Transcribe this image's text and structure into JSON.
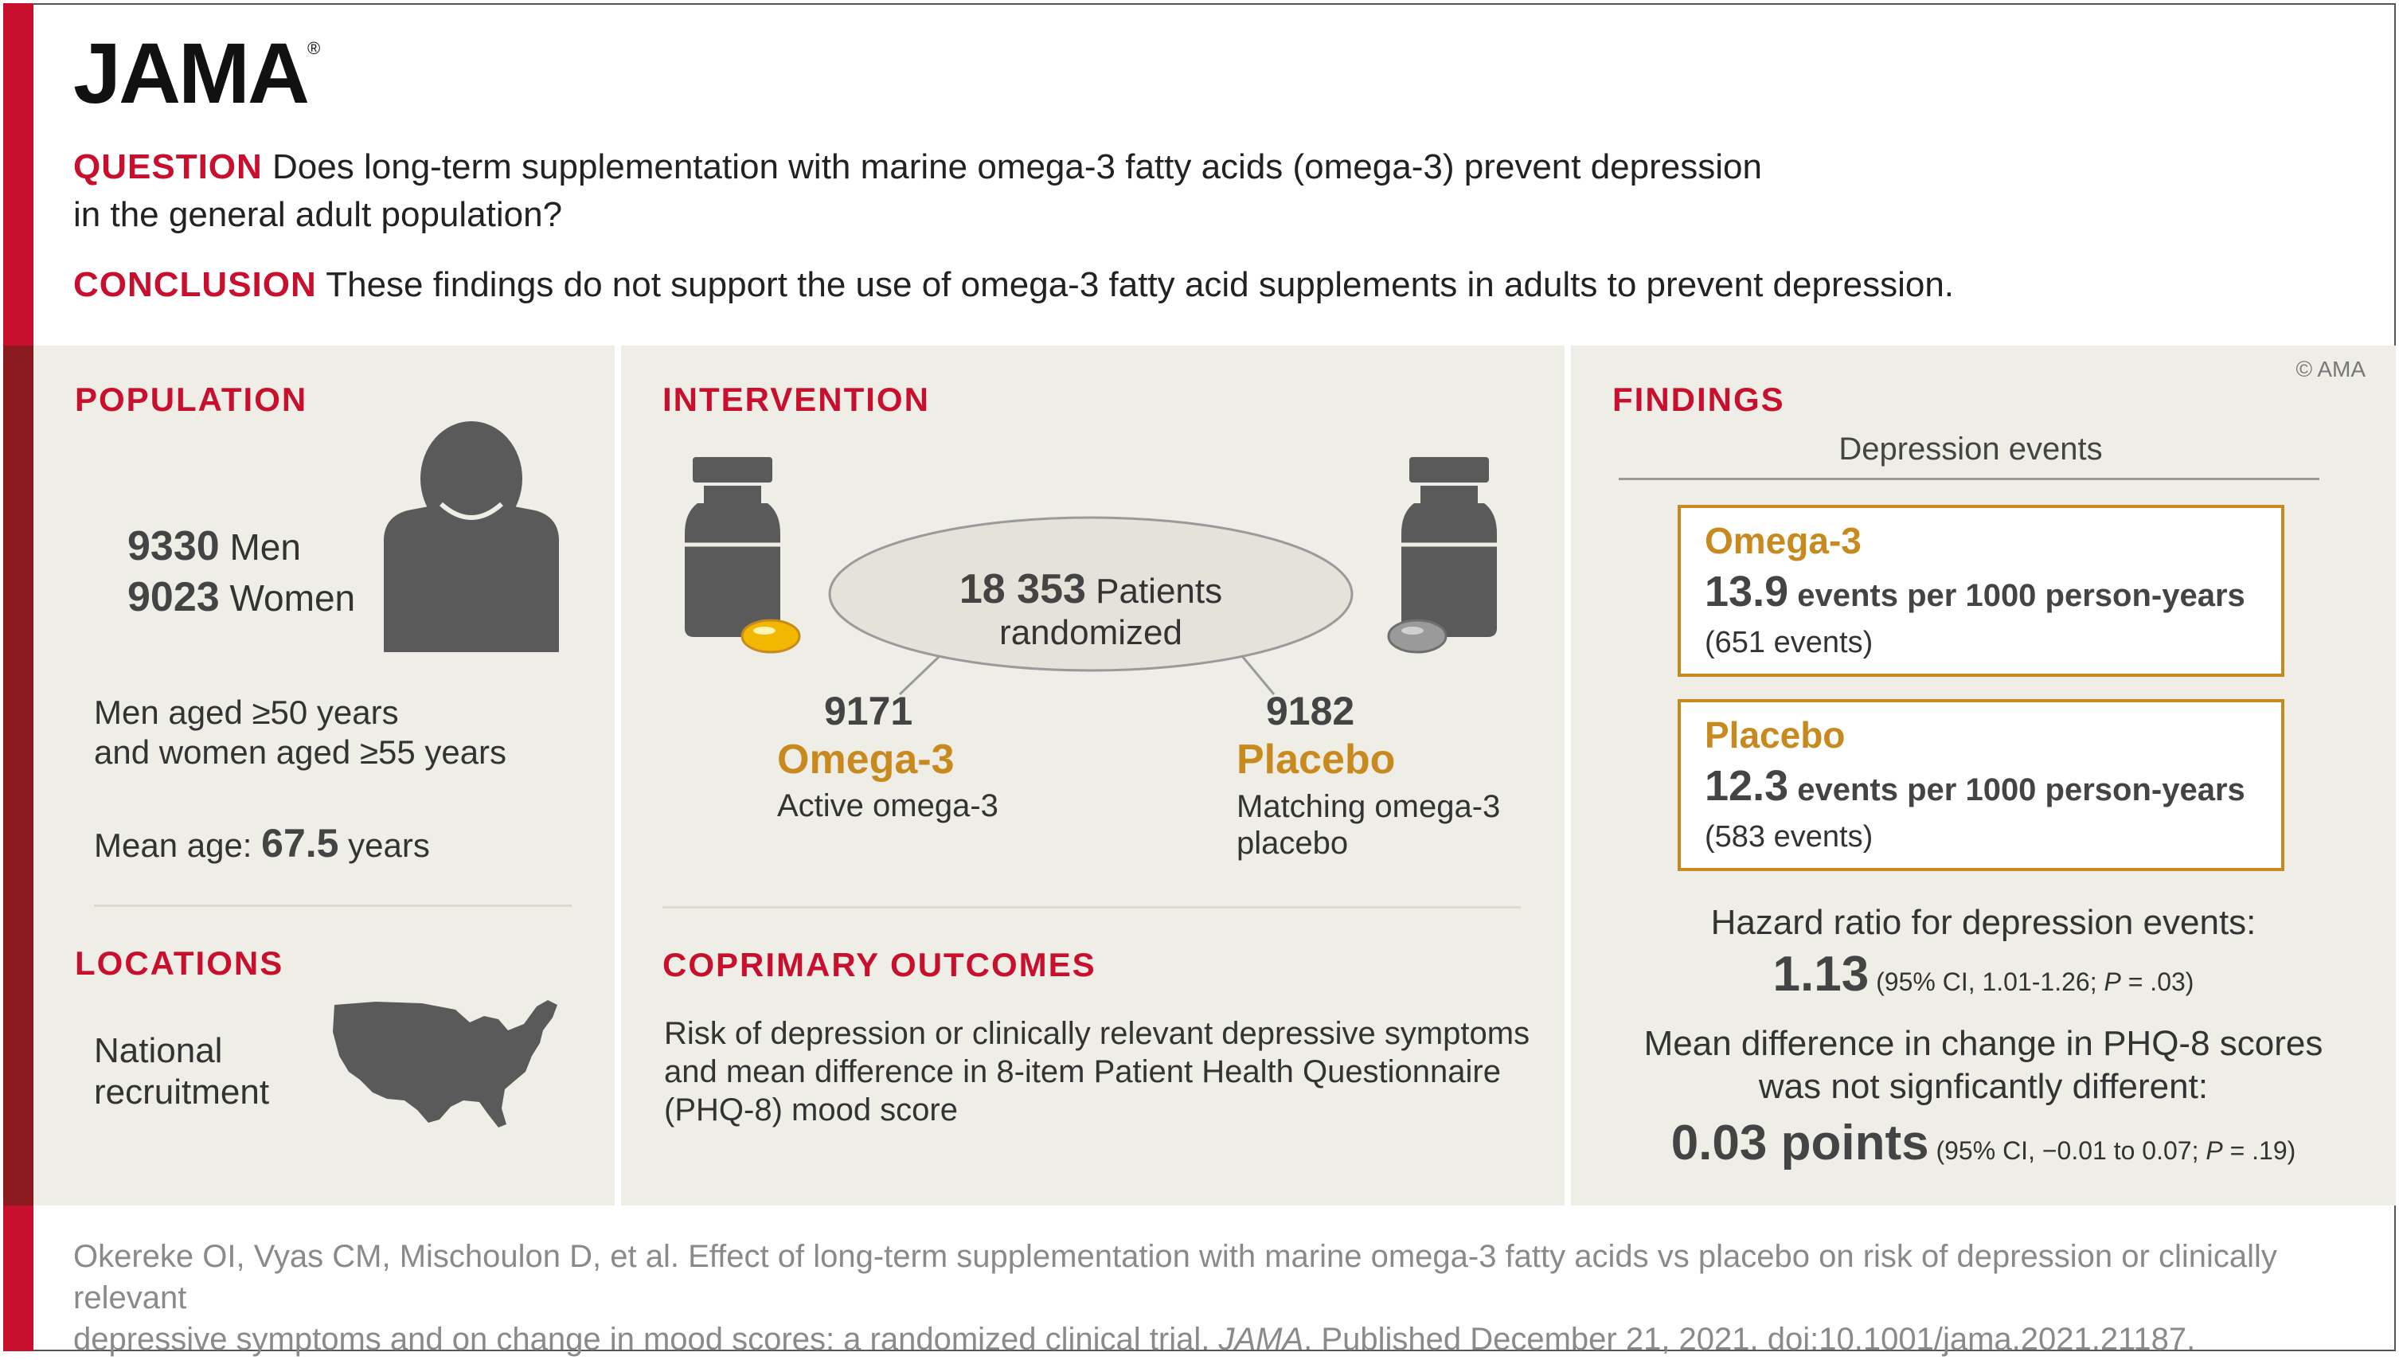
{
  "header": {
    "logo": "JAMA",
    "logo_mark": "®",
    "question_label": "QUESTION",
    "question_line1": "Does long-term supplementation with marine omega-3 fatty acids (omega-3) prevent depression",
    "question_line2": "in the general adult population?",
    "conclusion_label": "CONCLUSION",
    "conclusion_text": "These findings do not support the use of omega-3 fatty acid supplements in adults to prevent depression."
  },
  "population": {
    "heading": "POPULATION",
    "men_count": "9330",
    "men_label": "Men",
    "women_count": "9023",
    "women_label": "Women",
    "criteria_line1": "Men aged ≥50 years",
    "criteria_line2": "and women aged ≥55 years",
    "mean_age_label": "Mean age:",
    "mean_age_value": "67.5",
    "mean_age_unit": "years",
    "icon": "person-icon"
  },
  "locations": {
    "heading": "LOCATIONS",
    "line1": "National",
    "line2": "recruitment",
    "icon": "us-map-icon"
  },
  "intervention": {
    "heading": "INTERVENTION",
    "randomized_count": "18 353",
    "randomized_label": "Patients randomized",
    "arm1_count": "9171",
    "arm1_name": "Omega-3",
    "arm1_desc": "Active omega-3",
    "arm2_count": "9182",
    "arm2_name": "Placebo",
    "arm2_desc_line1": "Matching omega-3",
    "arm2_desc_line2": "placebo",
    "icon_left": "omega3-bottle-icon",
    "icon_right": "placebo-bottle-icon"
  },
  "outcomes": {
    "heading": "COPRIMARY OUTCOMES",
    "line1": "Risk of depression or clinically relevant depressive symptoms",
    "line2": "and mean difference in 8-item Patient Health Questionnaire",
    "line3": "(PHQ-8) mood score"
  },
  "findings": {
    "heading": "FINDINGS",
    "copyright": "© AMA",
    "subheading": "Depression events",
    "omega_name": "Omega-3",
    "omega_rate": "13.9",
    "omega_rate_unit": "events per 1000 person-years",
    "omega_events": "(651 events)",
    "placebo_name": "Placebo",
    "placebo_rate": "12.3",
    "placebo_rate_unit": "events per 1000 person-years",
    "placebo_events": "(583 events)",
    "hr_label": "Hazard ratio for depression events:",
    "hr_value": "1.13",
    "hr_ci_prefix": "(95% CI, 1.01-1.26; ",
    "hr_ci_p": "P",
    "hr_ci_suffix": " = .03)",
    "md_line1": "Mean difference in change in PHQ-8 scores",
    "md_line2": "was not signficantly different:",
    "md_value": "0.03 points",
    "md_ci_prefix": "(95% CI, −0.01 to 0.07; ",
    "md_ci_p": "P",
    "md_ci_suffix": " = .19)"
  },
  "citation": {
    "line1": "Okereke OI, Vyas CM, Mischoulon D, et al. Effect of long-term supplementation with marine omega-3 fatty acids vs placebo on risk of depression or clinically relevant",
    "line2_prefix": "depressive symptoms and on change in mood scores: a randomized clinical trial. ",
    "line2_journal": "JAMA",
    "line2_suffix": ". Published December 21, 2021. doi:10.1001/jama.2021.21187."
  },
  "colors": {
    "accent_red": "#c8102e",
    "dark_red": "#8b1a1f",
    "gold": "#c88a1e",
    "panel_bg": "#efeee6",
    "icon_gray": "#5a5a5a"
  }
}
